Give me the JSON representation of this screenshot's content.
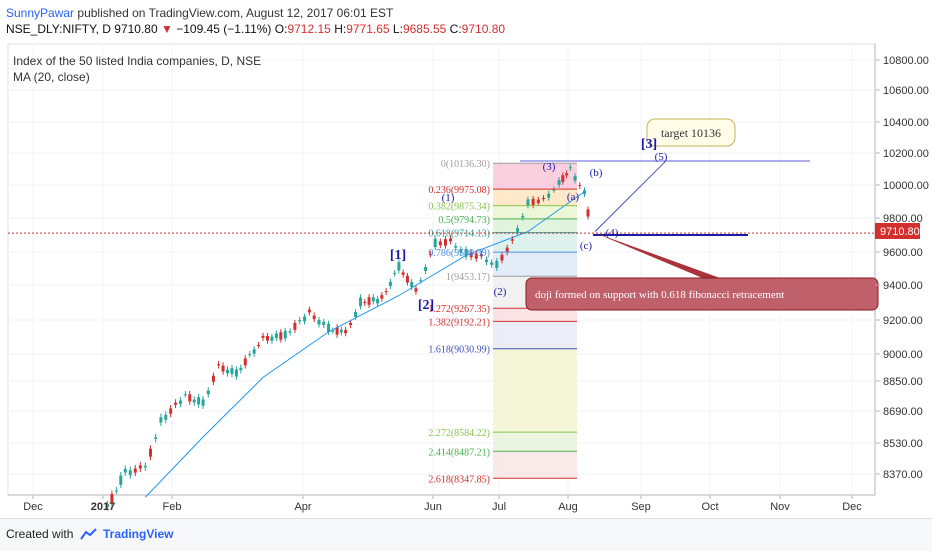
{
  "header": {
    "author": "SunnyPawar",
    "published": "published on TradingView.com, August 12, 2017 06:01 EST",
    "symbol": "NSE_DLY:NIFTY, D",
    "last": "9710.80",
    "change_arrow": "▼",
    "change": "−109.45 (−1.11%)",
    "o_label": "O:",
    "o": "9712.15",
    "h_label": "H:",
    "h": "9771.65",
    "l_label": "L:",
    "l": "9685.55",
    "c_label": "C:",
    "c": "9710.80"
  },
  "chart_title": "Index of the 50 listed India companies, D, NSE",
  "ma_label": "MA (20, close)",
  "price_badge": "9710.80",
  "footer": {
    "created": "Created with",
    "brand": "TradingView"
  },
  "colors": {
    "up": "#26a69a",
    "down": "#d32f2f",
    "ma": "#2196f3",
    "fib_blue": "#1a1aa6",
    "accent": "#2962ff"
  },
  "chart_data": {
    "type": "candlestick",
    "x_labels": [
      "Dec",
      "2017",
      "Feb",
      "Apr",
      "Jun",
      "Jul",
      "Aug",
      "Sep",
      "Oct",
      "Nov",
      "Dec"
    ],
    "y_ticks": [
      8370,
      8530,
      8690,
      8850,
      9000,
      9200,
      9400,
      9600,
      9800,
      10000,
      10200,
      10400,
      10600,
      10800
    ],
    "y_tick_labels": [
      "8370.00",
      "8530.00",
      "8690.00",
      "8850.00",
      "9000.00",
      "9200.00",
      "9400.00",
      "9600.00",
      "9800.00",
      "10000.00",
      "10200.00",
      "10400.00",
      "10600.00",
      "10800.00"
    ],
    "series": [
      {
        "name": "NIFTY",
        "points": [
          {
            "date": "2017-01-03",
            "c": 8200
          },
          {
            "date": "2017-01-11",
            "c": 8380
          },
          {
            "date": "2017-01-20",
            "c": 8400
          },
          {
            "date": "2017-01-27",
            "c": 8640
          },
          {
            "date": "2017-02-07",
            "c": 8770
          },
          {
            "date": "2017-02-15",
            "c": 8730
          },
          {
            "date": "2017-02-22",
            "c": 8930
          },
          {
            "date": "2017-03-02",
            "c": 8890
          },
          {
            "date": "2017-03-14",
            "c": 9090
          },
          {
            "date": "2017-03-24",
            "c": 9110
          },
          {
            "date": "2017-04-04",
            "c": 9240
          },
          {
            "date": "2017-04-13",
            "c": 9150
          },
          {
            "date": "2017-04-21",
            "c": 9120
          },
          {
            "date": "2017-04-28",
            "c": 9300
          },
          {
            "date": "2017-05-08",
            "c": 9320
          },
          {
            "date": "2017-05-16",
            "c": 9510
          },
          {
            "date": "2017-05-24",
            "c": 9360
          },
          {
            "date": "2017-06-02",
            "c": 9650
          },
          {
            "date": "2017-06-09",
            "c": 9660
          },
          {
            "date": "2017-06-16",
            "c": 9590
          },
          {
            "date": "2017-06-23",
            "c": 9570
          },
          {
            "date": "2017-06-30",
            "c": 9520
          },
          {
            "date": "2017-07-07",
            "c": 9660
          },
          {
            "date": "2017-07-14",
            "c": 9890
          },
          {
            "date": "2017-07-21",
            "c": 9910
          },
          {
            "date": "2017-07-28",
            "c": 10010
          },
          {
            "date": "2017-08-02",
            "c": 10100
          },
          {
            "date": "2017-08-08",
            "c": 9950
          },
          {
            "date": "2017-08-11",
            "c": 9710
          }
        ]
      },
      {
        "name": "MA (20, close)",
        "points": [
          {
            "date": "2017-01-20",
            "v": 8250
          },
          {
            "date": "2017-02-15",
            "v": 8560
          },
          {
            "date": "2017-03-14",
            "v": 8870
          },
          {
            "date": "2017-04-13",
            "v": 9130
          },
          {
            "date": "2017-05-16",
            "v": 9340
          },
          {
            "date": "2017-06-16",
            "v": 9580
          },
          {
            "date": "2017-07-14",
            "v": 9720
          },
          {
            "date": "2017-08-08",
            "v": 9960
          }
        ]
      }
    ],
    "fib_levels": [
      {
        "label": "0(10136.30)",
        "price": 10136.3,
        "color": "#9e9e9e"
      },
      {
        "label": "0.236(9975.08)",
        "price": 9975.08,
        "color": "#d32f2f"
      },
      {
        "label": "0.382(9875.34)",
        "price": 9875.34,
        "color": "#8bc34a"
      },
      {
        "label": "0.5(9794.73)",
        "price": 9794.73,
        "color": "#4caf50"
      },
      {
        "label": "0.618(9714.13)",
        "price": 9714.13,
        "color": "#26a69a"
      },
      {
        "label": "0.786(9599.39)",
        "price": 9599.39,
        "color": "#4a90e2"
      },
      {
        "label": "1(9453.17)",
        "price": 9453.17,
        "color": "#9e9e9e"
      },
      {
        "label": "1.272(9267.35)",
        "price": 9267.35,
        "color": "#d32f2f"
      },
      {
        "label": "1.382(9192.21)",
        "price": 9192.21,
        "color": "#d32f2f"
      },
      {
        "label": "1.618(9030.99)",
        "price": 9030.99,
        "color": "#3f51b5"
      },
      {
        "label": "2.272(8584.22)",
        "price": 8584.22,
        "color": "#8bc34a"
      },
      {
        "label": "2.414(8487.21)",
        "price": 8487.21,
        "color": "#4caf50"
      },
      {
        "label": "2.618(8347.85)",
        "price": 8347.85,
        "color": "#d32f2f"
      }
    ],
    "wave_labels_large": [
      "[1]",
      "[2]",
      "[3]"
    ],
    "wave_labels_small": [
      "(1)",
      "(2)",
      "(3)",
      "(4)",
      "(5)",
      "(a)",
      "(b)",
      "(c)"
    ],
    "target_label": "target 10136",
    "annotation": "doji formed on support with 0.618 fibonacci retracement"
  }
}
